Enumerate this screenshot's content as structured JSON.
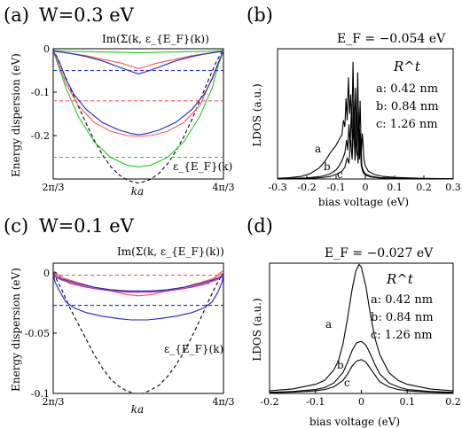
{
  "chart_data": [
    {
      "id": "a",
      "type": "line",
      "panel_label": "(a)",
      "title": "W=0.3 eV",
      "xlabel": "ka",
      "ylabel": "Energy dispersion (eV)",
      "xlim": [
        2.0944,
        4.1888
      ],
      "ylim": [
        -0.3,
        0.0
      ],
      "xtick_labels": [
        "2π/3",
        "4π/3"
      ],
      "ytick_values": [
        0,
        -0.1,
        -0.2
      ],
      "ytick_labels": [
        "0",
        "-0.1",
        "-0.2"
      ],
      "annotations": [
        "Im(Σ(k, ε_{E_F}(k))",
        "ε_{E_F}(k)"
      ],
      "series": [
        {
          "color": "#000000",
          "dash": "4,3",
          "x": [
            2.094,
            2.2,
            2.3,
            2.4,
            2.5,
            2.6,
            2.7,
            2.8,
            2.9,
            3.0,
            3.1,
            3.1416,
            3.2,
            3.3,
            3.4,
            3.5,
            3.6,
            3.7,
            3.8,
            3.9,
            4.0,
            4.1,
            4.189
          ],
          "y": [
            0.0,
            -0.045,
            -0.089,
            -0.131,
            -0.172,
            -0.211,
            -0.244,
            -0.271,
            -0.29,
            -0.302,
            -0.308,
            -0.309,
            -0.307,
            -0.3,
            -0.286,
            -0.265,
            -0.237,
            -0.203,
            -0.163,
            -0.119,
            -0.074,
            -0.03,
            0.0
          ]
        },
        {
          "color": "#22cc22",
          "dash": "",
          "x": [
            2.094,
            2.15,
            2.25,
            2.4,
            2.6,
            2.8,
            3.0,
            3.1416,
            3.3,
            3.5,
            3.7,
            3.9,
            4.05,
            4.13,
            4.189
          ],
          "y": [
            -0.005,
            -0.035,
            -0.09,
            -0.155,
            -0.215,
            -0.25,
            -0.268,
            -0.272,
            -0.268,
            -0.25,
            -0.215,
            -0.155,
            -0.09,
            -0.035,
            -0.005
          ]
        },
        {
          "color": "#22cc22",
          "dash": "",
          "x": [
            2.094,
            2.3,
            2.6,
            2.9,
            3.1416,
            3.4,
            3.7,
            4.0,
            4.189
          ],
          "y": [
            -0.004,
            -0.006,
            -0.007,
            -0.008,
            -0.009,
            -0.008,
            -0.007,
            -0.006,
            -0.004
          ]
        },
        {
          "color": "#22cc22",
          "dash": "4,3",
          "x": [
            2.094,
            4.189
          ],
          "y": [
            -0.25,
            -0.25
          ]
        },
        {
          "color": "#ff5555",
          "dash": "",
          "x": [
            2.094,
            2.16,
            2.25,
            2.4,
            2.6,
            2.8,
            3.0,
            3.1416,
            3.3,
            3.5,
            3.7,
            3.9,
            4.02,
            4.12,
            4.189
          ],
          "y": [
            -0.005,
            -0.035,
            -0.08,
            -0.13,
            -0.17,
            -0.19,
            -0.2,
            -0.201,
            -0.2,
            -0.19,
            -0.17,
            -0.13,
            -0.08,
            -0.035,
            -0.005
          ]
        },
        {
          "color": "#ff5555",
          "dash": "",
          "x": [
            2.094,
            2.2,
            2.35,
            2.5,
            2.65,
            2.8,
            2.95,
            3.05,
            3.1416,
            3.25,
            3.35,
            3.5,
            3.65,
            3.8,
            3.95,
            4.1,
            4.189
          ],
          "y": [
            -0.006,
            -0.008,
            -0.012,
            -0.016,
            -0.022,
            -0.028,
            -0.034,
            -0.04,
            -0.046,
            -0.04,
            -0.034,
            -0.028,
            -0.022,
            -0.016,
            -0.012,
            -0.008,
            -0.006
          ]
        },
        {
          "color": "#ff5555",
          "dash": "4,3",
          "x": [
            2.094,
            4.189
          ],
          "y": [
            -0.12,
            -0.12
          ]
        },
        {
          "color": "#2222cc",
          "dash": "",
          "x": [
            2.094,
            2.17,
            2.25,
            2.35,
            2.5,
            2.7,
            2.9,
            3.05,
            3.1416,
            3.25,
            3.4,
            3.6,
            3.8,
            3.95,
            4.05,
            4.13,
            4.189
          ],
          "y": [
            -0.005,
            -0.03,
            -0.07,
            -0.105,
            -0.14,
            -0.17,
            -0.187,
            -0.195,
            -0.198,
            -0.195,
            -0.187,
            -0.17,
            -0.14,
            -0.105,
            -0.07,
            -0.03,
            -0.005
          ]
        },
        {
          "color": "#2222cc",
          "dash": "",
          "x": [
            2.094,
            2.2,
            2.35,
            2.5,
            2.7,
            2.9,
            3.05,
            3.1416,
            3.25,
            3.4,
            3.6,
            3.8,
            3.95,
            4.1,
            4.189
          ],
          "y": [
            -0.005,
            -0.008,
            -0.012,
            -0.018,
            -0.028,
            -0.042,
            -0.052,
            -0.058,
            -0.052,
            -0.042,
            -0.028,
            -0.018,
            -0.012,
            -0.008,
            -0.005
          ]
        },
        {
          "color": "#2222cc",
          "dash": "4,3",
          "x": [
            2.094,
            4.189
          ],
          "y": [
            -0.05,
            -0.05
          ]
        }
      ]
    },
    {
      "id": "b",
      "type": "line",
      "panel_label": "(b)",
      "ef_label": "E_F = −0.054 eV",
      "xlabel": "bias voltage (eV)",
      "ylabel": "LDOS (a.u.)",
      "xlim": [
        -0.3,
        0.3
      ],
      "ylim": [
        0,
        1.0
      ],
      "xtick_values": [
        -0.3,
        -0.2,
        -0.1,
        0,
        0.1,
        0.2,
        0.3
      ],
      "xtick_labels": [
        "-0.3",
        "-0.2",
        "-0.1",
        "0",
        "0.1",
        "0.2",
        "0.3"
      ],
      "legend_title": "R^t",
      "legend_entries": [
        "a: 0.42 nm",
        "b: 0.84 nm",
        "c: 1.26 nm"
      ],
      "curve_labels": [
        "a",
        "b",
        "c"
      ],
      "series": [
        {
          "name": "a",
          "x": [
            -0.3,
            -0.26,
            -0.22,
            -0.19,
            -0.16,
            -0.14,
            -0.12,
            -0.1,
            -0.09,
            -0.08,
            -0.075,
            -0.07,
            -0.066,
            -0.062,
            -0.058,
            -0.054,
            -0.05,
            -0.046,
            -0.042,
            -0.038,
            -0.034,
            -0.03,
            -0.026,
            -0.022,
            -0.018,
            -0.014,
            -0.01,
            -0.005,
            0.0,
            0.01,
            0.03,
            0.06,
            0.1,
            0.15,
            0.2,
            0.25,
            0.3
          ],
          "y": [
            0.005,
            0.01,
            0.02,
            0.04,
            0.08,
            0.13,
            0.2,
            0.26,
            0.3,
            0.34,
            0.45,
            0.4,
            0.62,
            0.45,
            0.78,
            0.5,
            0.65,
            0.4,
            0.9,
            0.35,
            0.7,
            0.3,
            0.82,
            0.25,
            0.6,
            0.2,
            0.35,
            0.15,
            0.1,
            0.06,
            0.035,
            0.02,
            0.012,
            0.008,
            0.005,
            0.003,
            0.002
          ]
        },
        {
          "name": "b",
          "x": [
            -0.3,
            -0.2,
            -0.15,
            -0.12,
            -0.1,
            -0.09,
            -0.08,
            -0.07,
            -0.064,
            -0.06,
            -0.056,
            -0.052,
            -0.048,
            -0.044,
            -0.04,
            -0.036,
            -0.032,
            -0.028,
            -0.024,
            -0.02,
            -0.016,
            -0.012,
            -0.006,
            0.0,
            0.02,
            0.05,
            0.1,
            0.2,
            0.3
          ],
          "y": [
            0.002,
            0.008,
            0.02,
            0.04,
            0.07,
            0.1,
            0.14,
            0.2,
            0.3,
            0.22,
            0.42,
            0.25,
            0.52,
            0.24,
            0.6,
            0.2,
            0.48,
            0.18,
            0.55,
            0.15,
            0.35,
            0.1,
            0.06,
            0.04,
            0.02,
            0.01,
            0.006,
            0.003,
            0.001
          ]
        },
        {
          "name": "c",
          "x": [
            -0.3,
            -0.2,
            -0.15,
            -0.12,
            -0.1,
            -0.08,
            -0.07,
            -0.062,
            -0.056,
            -0.05,
            -0.045,
            -0.04,
            -0.035,
            -0.03,
            -0.025,
            -0.02,
            -0.014,
            -0.008,
            0.0,
            0.02,
            0.05,
            0.1,
            0.2,
            0.3
          ],
          "y": [
            0.001,
            0.004,
            0.01,
            0.02,
            0.035,
            0.06,
            0.09,
            0.16,
            0.12,
            0.3,
            0.15,
            0.42,
            0.14,
            0.33,
            0.12,
            0.38,
            0.1,
            0.05,
            0.03,
            0.015,
            0.008,
            0.004,
            0.002,
            0.001
          ]
        }
      ]
    },
    {
      "id": "c",
      "type": "line",
      "panel_label": "(c)",
      "title": "W=0.1 eV",
      "xlabel": "ka",
      "ylabel": "Energy dispersion (eV)",
      "xlim": [
        2.0944,
        4.1888
      ],
      "ylim": [
        -0.1,
        0.008
      ],
      "xtick_labels": [
        "2π/3",
        "4π/3"
      ],
      "ytick_values": [
        0,
        -0.05,
        -0.1
      ],
      "ytick_labels": [
        "0",
        "-0.05",
        "-0.1"
      ],
      "annotations": [
        "Im(Σ(k, ε_{E_F}(k))",
        "ε_{E_F}(k)"
      ],
      "series": [
        {
          "color": "#000000",
          "dash": "4,3",
          "x": [
            2.094,
            2.2,
            2.3,
            2.4,
            2.5,
            2.6,
            2.7,
            2.8,
            2.9,
            3.0,
            3.1,
            3.1416,
            3.2,
            3.3,
            3.4,
            3.5,
            3.6,
            3.7,
            3.8,
            3.9,
            4.0,
            4.1,
            4.189
          ],
          "y": [
            0.0,
            -0.014,
            -0.029,
            -0.042,
            -0.055,
            -0.068,
            -0.079,
            -0.088,
            -0.094,
            -0.098,
            -0.1,
            -0.1,
            -0.1,
            -0.097,
            -0.093,
            -0.086,
            -0.077,
            -0.066,
            -0.053,
            -0.039,
            -0.024,
            -0.01,
            0.0
          ]
        },
        {
          "color": "#ff5555",
          "dash": "",
          "x": [
            2.094,
            2.13,
            2.2,
            2.3,
            2.5,
            2.7,
            2.9,
            3.1416,
            3.4,
            3.6,
            3.8,
            4.0,
            4.08,
            4.15,
            4.189
          ],
          "y": [
            0.002,
            0.0,
            -0.005,
            -0.009,
            -0.012,
            -0.014,
            -0.015,
            -0.016,
            -0.015,
            -0.014,
            -0.012,
            -0.009,
            -0.005,
            0.0,
            0.002
          ]
        },
        {
          "color": "#ff5555",
          "dash": "",
          "x": [
            2.094,
            2.15,
            2.25,
            2.4,
            2.6,
            2.8,
            3.0,
            3.1416,
            3.3,
            3.5,
            3.7,
            3.9,
            4.05,
            4.13,
            4.189
          ],
          "y": [
            0.0,
            -0.002,
            -0.005,
            -0.008,
            -0.012,
            -0.015,
            -0.018,
            -0.019,
            -0.018,
            -0.015,
            -0.012,
            -0.008,
            -0.005,
            -0.002,
            0.0
          ]
        },
        {
          "color": "#ff5555",
          "dash": "4,3",
          "x": [
            2.094,
            4.189
          ],
          "y": [
            -0.002,
            -0.002
          ]
        },
        {
          "color": "#aa33aa",
          "dash": "",
          "x": [
            2.094,
            2.2,
            2.4,
            2.6,
            2.8,
            3.0,
            3.1416,
            3.3,
            3.5,
            3.7,
            3.9,
            4.1,
            4.189
          ],
          "y": [
            -0.003,
            -0.006,
            -0.01,
            -0.013,
            -0.015,
            -0.016,
            -0.016,
            -0.016,
            -0.015,
            -0.013,
            -0.01,
            -0.006,
            -0.003
          ]
        },
        {
          "color": "#2222cc",
          "dash": "",
          "x": [
            2.094,
            2.12,
            2.18,
            2.25,
            2.35,
            2.5,
            2.7,
            2.9,
            3.05,
            3.1416,
            3.25,
            3.4,
            3.6,
            3.8,
            3.95,
            4.05,
            4.12,
            4.17,
            4.189
          ],
          "y": [
            -0.002,
            -0.008,
            -0.016,
            -0.024,
            -0.029,
            -0.033,
            -0.036,
            -0.038,
            -0.039,
            -0.039,
            -0.039,
            -0.038,
            -0.036,
            -0.033,
            -0.029,
            -0.024,
            -0.016,
            -0.008,
            -0.002
          ]
        },
        {
          "color": "#2222cc",
          "dash": "",
          "x": [
            2.094,
            2.2,
            2.4,
            2.6,
            2.8,
            3.0,
            3.1416,
            3.3,
            3.5,
            3.7,
            3.9,
            4.1,
            4.189
          ],
          "y": [
            -0.002,
            -0.005,
            -0.009,
            -0.012,
            -0.014,
            -0.015,
            -0.015,
            -0.015,
            -0.014,
            -0.012,
            -0.009,
            -0.005,
            -0.002
          ]
        },
        {
          "color": "#2222cc",
          "dash": "4,3",
          "x": [
            2.094,
            4.189
          ],
          "y": [
            -0.027,
            -0.027
          ]
        }
      ]
    },
    {
      "id": "d",
      "type": "line",
      "panel_label": "(d)",
      "ef_label": "E_F = −0.027 eV",
      "xlabel": "bias voltage (eV)",
      "ylabel": "LDOS (a.u.)",
      "xlim": [
        -0.2,
        0.2
      ],
      "ylim": [
        0,
        1.0
      ],
      "xtick_values": [
        -0.2,
        -0.1,
        0,
        0.1,
        0.2
      ],
      "xtick_labels": [
        "-0.2",
        "-0.1",
        "0",
        "0.1",
        "0.2"
      ],
      "legend_title": "R^t",
      "legend_entries": [
        "a: 0.42 nm",
        "b: 0.84 nm",
        "c: 1.26 nm"
      ],
      "curve_labels": [
        "a",
        "b",
        "c"
      ],
      "series": [
        {
          "name": "a",
          "x": [
            -0.2,
            -0.15,
            -0.1,
            -0.08,
            -0.06,
            -0.05,
            -0.04,
            -0.03,
            -0.02,
            -0.012,
            -0.005,
            0.0,
            0.01,
            0.02,
            0.03,
            0.04,
            0.06,
            0.08,
            0.1,
            0.15,
            0.2
          ],
          "y": [
            0.02,
            0.035,
            0.07,
            0.1,
            0.18,
            0.25,
            0.38,
            0.58,
            0.8,
            0.94,
            0.99,
            0.97,
            0.82,
            0.6,
            0.42,
            0.3,
            0.16,
            0.1,
            0.07,
            0.035,
            0.02
          ]
        },
        {
          "name": "b",
          "x": [
            -0.2,
            -0.15,
            -0.1,
            -0.08,
            -0.06,
            -0.04,
            -0.03,
            -0.02,
            -0.01,
            0.0,
            0.01,
            0.02,
            0.03,
            0.04,
            0.06,
            0.08,
            0.1,
            0.15,
            0.2
          ],
          "y": [
            0.008,
            0.015,
            0.03,
            0.045,
            0.08,
            0.16,
            0.24,
            0.33,
            0.39,
            0.4,
            0.37,
            0.3,
            0.22,
            0.15,
            0.08,
            0.05,
            0.03,
            0.015,
            0.008
          ]
        },
        {
          "name": "c",
          "x": [
            -0.2,
            -0.15,
            -0.1,
            -0.08,
            -0.06,
            -0.04,
            -0.03,
            -0.02,
            -0.01,
            0.0,
            0.01,
            0.02,
            0.03,
            0.04,
            0.06,
            0.08,
            0.1,
            0.15,
            0.2
          ],
          "y": [
            0.005,
            0.01,
            0.02,
            0.03,
            0.05,
            0.1,
            0.15,
            0.21,
            0.25,
            0.26,
            0.24,
            0.19,
            0.14,
            0.09,
            0.05,
            0.03,
            0.02,
            0.01,
            0.005
          ]
        }
      ]
    }
  ]
}
